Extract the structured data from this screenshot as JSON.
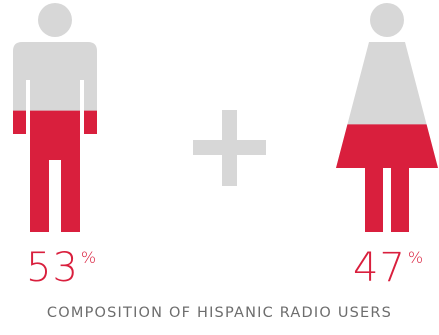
{
  "colors": {
    "accent": "#d91f3d",
    "empty": "#d7d7d7",
    "caption": "#6d6d6d"
  },
  "chart_data": {
    "type": "pictogram",
    "title": "COMPOSITION OF HISPANIC RADIO USERS",
    "series": [
      {
        "name": "male",
        "icon": "male-figure-icon",
        "value": 53,
        "value_label": "53",
        "unit": "%"
      },
      {
        "name": "female",
        "icon": "female-figure-icon",
        "value": 47,
        "value_label": "47",
        "unit": "%"
      }
    ],
    "separator": "plus-icon"
  }
}
